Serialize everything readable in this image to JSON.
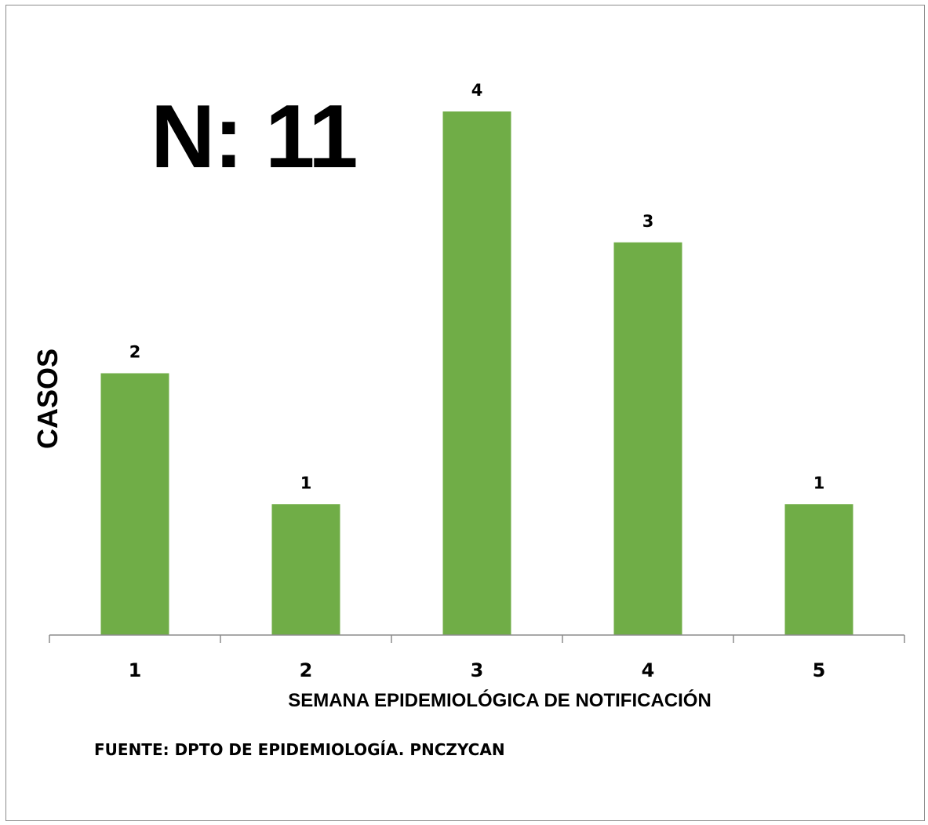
{
  "chart_data": {
    "type": "bar",
    "categories": [
      "1",
      "2",
      "3",
      "4",
      "5"
    ],
    "values": [
      2,
      1,
      4,
      3,
      1
    ],
    "data_labels": [
      "2",
      "1",
      "4",
      "3",
      "1"
    ],
    "xlabel": "SEMANA EPIDEMIOLÓGICA DE NOTIFICACIÓN",
    "ylabel": "CASOS",
    "ylim": [
      0,
      4
    ],
    "grid": false,
    "bar_color": "#70ad47",
    "annotations": {
      "total": "N: 11",
      "source": "FUENTE: DPTO DE EPIDEMIOLOGÍA. PNCZYCAN"
    }
  }
}
